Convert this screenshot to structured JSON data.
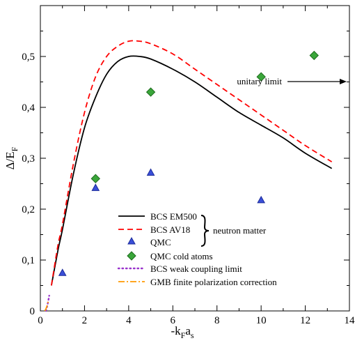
{
  "chart_data": {
    "type": "line",
    "title": "",
    "xlabel": {
      "main": "-k",
      "sub1": "F",
      "mid": "a",
      "sub2": "s"
    },
    "ylabel": {
      "main": "Δ/E",
      "sub": "F"
    },
    "xlim": [
      0,
      14
    ],
    "ylim": [
      0,
      0.6
    ],
    "x_ticks": [
      0,
      2,
      4,
      6,
      8,
      10,
      12,
      14
    ],
    "x_tick_labels": [
      "0",
      "2",
      "4",
      "6",
      "8",
      "10",
      "12",
      "14"
    ],
    "y_ticks": [
      0,
      0.1,
      0.2,
      0.3,
      0.4,
      0.5
    ],
    "y_tick_labels": [
      "0",
      "0,1",
      "0,2",
      "0,3",
      "0,4",
      "0,5"
    ],
    "grid": false,
    "legend_position": "lower-center",
    "series": [
      {
        "name": "BCS EM500",
        "kind": "line",
        "style": "solid",
        "color": "#000000",
        "x": [
          0.5,
          0.8,
          1.0,
          1.5,
          2.0,
          2.5,
          3.0,
          3.5,
          4.0,
          4.5,
          5.0,
          6.0,
          7.0,
          8.0,
          9.0,
          10.0,
          11.0,
          12.0,
          13.2
        ],
        "y": [
          0.05,
          0.12,
          0.16,
          0.27,
          0.36,
          0.42,
          0.465,
          0.49,
          0.5,
          0.5,
          0.495,
          0.475,
          0.45,
          0.42,
          0.39,
          0.365,
          0.34,
          0.31,
          0.28
        ]
      },
      {
        "name": "BCS AV18",
        "kind": "line",
        "style": "dashed",
        "color": "#ff0000",
        "x": [
          0.5,
          0.8,
          1.0,
          1.5,
          2.0,
          2.5,
          3.0,
          3.5,
          4.0,
          4.5,
          5.0,
          6.0,
          7.0,
          8.0,
          9.0,
          10.0,
          11.0,
          12.0,
          13.2
        ],
        "y": [
          0.05,
          0.13,
          0.17,
          0.29,
          0.39,
          0.46,
          0.5,
          0.52,
          0.53,
          0.53,
          0.525,
          0.505,
          0.475,
          0.445,
          0.415,
          0.385,
          0.355,
          0.325,
          0.293
        ]
      },
      {
        "name": "QMC",
        "kind": "points",
        "marker": "triangle",
        "color": "#3a4fd8",
        "x": [
          1.0,
          2.5,
          5.0,
          10.0
        ],
        "y": [
          0.075,
          0.242,
          0.272,
          0.218
        ]
      },
      {
        "name": "QMC cold atoms",
        "kind": "points",
        "marker": "diamond",
        "color": "#3aa63a",
        "x": [
          2.5,
          5.0,
          10.0,
          12.4
        ],
        "y": [
          0.26,
          0.43,
          0.46,
          0.502
        ]
      },
      {
        "name": "BCS weak coupling limit",
        "kind": "line",
        "style": "dotted",
        "color": "#9933cc",
        "x": [
          0.25,
          0.3,
          0.35,
          0.4
        ],
        "y": [
          0.0,
          0.008,
          0.018,
          0.03
        ]
      },
      {
        "name": "GMB finite polarization correction",
        "kind": "line",
        "style": "dashdot",
        "color": "#ff9900",
        "x": [
          0.2,
          0.25,
          0.3,
          0.35
        ],
        "y": [
          0.0,
          0.004,
          0.01,
          0.018
        ]
      }
    ],
    "annotations": {
      "neutron_matter": "neutron matter",
      "unitary_limit": "unitary limit"
    }
  }
}
